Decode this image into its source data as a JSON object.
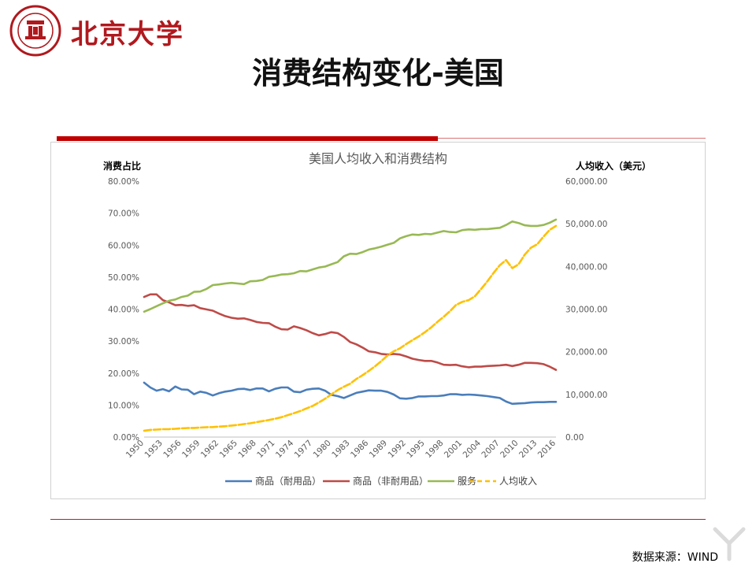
{
  "header": {
    "university_name": "北京大学",
    "seal_ring_text": "PEKING UNIVERSITY",
    "seal_year": "1898",
    "slide_title": "消费结构变化-美国"
  },
  "footer": {
    "source": "数据来源：WIND"
  },
  "colors": {
    "brand_red": "#b0191e",
    "durable": "#4a7ebb",
    "nondurable": "#be4b48",
    "services": "#98b954",
    "income": "#ffc000"
  },
  "chart_data": {
    "type": "line",
    "title": "美国人均收入和消费结构",
    "ylabel": "消费占比",
    "y2label": "人均收入（美元）",
    "ylim": [
      0,
      0.8
    ],
    "y2lim": [
      0,
      60000
    ],
    "y_ticks": [
      "0.00%",
      "10.00%",
      "20.00%",
      "30.00%",
      "40.00%",
      "50.00%",
      "60.00%",
      "70.00%",
      "80.00%"
    ],
    "y2_ticks": [
      "0.00",
      "10,000.00",
      "20,000.00",
      "30,000.00",
      "40,000.00",
      "50,000.00",
      "60,000.00"
    ],
    "x_tick_labels": [
      "1950",
      "1953",
      "1956",
      "1959",
      "1962",
      "1965",
      "1968",
      "1971",
      "1974",
      "1977",
      "1980",
      "1983",
      "1986",
      "1989",
      "1992",
      "1995",
      "1998",
      "2001",
      "2004",
      "2007",
      "2010",
      "2013",
      "2016"
    ],
    "x": [
      1950,
      1951,
      1952,
      1953,
      1954,
      1955,
      1956,
      1957,
      1958,
      1959,
      1960,
      1961,
      1962,
      1963,
      1964,
      1965,
      1966,
      1967,
      1968,
      1969,
      1970,
      1971,
      1972,
      1973,
      1974,
      1975,
      1976,
      1977,
      1978,
      1979,
      1980,
      1981,
      1982,
      1983,
      1984,
      1985,
      1986,
      1987,
      1988,
      1989,
      1990,
      1991,
      1992,
      1993,
      1994,
      1995,
      1996,
      1997,
      1998,
      1999,
      2000,
      2001,
      2002,
      2003,
      2004,
      2005,
      2006,
      2007,
      2008,
      2009,
      2010,
      2011,
      2012,
      2013,
      2014,
      2015,
      2016
    ],
    "legend_position": "bottom",
    "series": [
      {
        "name": "商品（耐用品）",
        "axis": "left",
        "color": "#4a7ebb",
        "style": "solid",
        "values": [
          0.17,
          0.155,
          0.145,
          0.15,
          0.143,
          0.158,
          0.149,
          0.148,
          0.134,
          0.142,
          0.138,
          0.13,
          0.137,
          0.142,
          0.145,
          0.15,
          0.151,
          0.147,
          0.152,
          0.152,
          0.143,
          0.151,
          0.155,
          0.155,
          0.142,
          0.14,
          0.148,
          0.151,
          0.152,
          0.145,
          0.132,
          0.128,
          0.122,
          0.13,
          0.138,
          0.142,
          0.146,
          0.145,
          0.145,
          0.141,
          0.133,
          0.121,
          0.12,
          0.122,
          0.127,
          0.127,
          0.128,
          0.128,
          0.13,
          0.134,
          0.134,
          0.132,
          0.133,
          0.132,
          0.13,
          0.128,
          0.125,
          0.122,
          0.111,
          0.104,
          0.105,
          0.106,
          0.108,
          0.109,
          0.109,
          0.11,
          0.11
        ]
      },
      {
        "name": "商品（非耐用品）",
        "axis": "left",
        "color": "#be4b48",
        "style": "solid",
        "values": [
          0.438,
          0.446,
          0.446,
          0.428,
          0.421,
          0.412,
          0.413,
          0.41,
          0.412,
          0.403,
          0.399,
          0.395,
          0.386,
          0.378,
          0.373,
          0.37,
          0.371,
          0.366,
          0.36,
          0.357,
          0.356,
          0.345,
          0.337,
          0.336,
          0.346,
          0.341,
          0.334,
          0.325,
          0.318,
          0.322,
          0.328,
          0.325,
          0.313,
          0.297,
          0.29,
          0.28,
          0.268,
          0.265,
          0.26,
          0.258,
          0.26,
          0.258,
          0.252,
          0.245,
          0.241,
          0.238,
          0.238,
          0.233,
          0.226,
          0.225,
          0.226,
          0.221,
          0.218,
          0.22,
          0.22,
          0.222,
          0.223,
          0.224,
          0.226,
          0.222,
          0.226,
          0.232,
          0.232,
          0.231,
          0.228,
          0.22,
          0.21
        ]
      },
      {
        "name": "服务",
        "axis": "left",
        "color": "#98b954",
        "style": "solid",
        "values": [
          0.392,
          0.4,
          0.409,
          0.418,
          0.426,
          0.43,
          0.438,
          0.442,
          0.454,
          0.455,
          0.463,
          0.475,
          0.477,
          0.48,
          0.482,
          0.48,
          0.478,
          0.487,
          0.488,
          0.491,
          0.501,
          0.504,
          0.508,
          0.509,
          0.512,
          0.519,
          0.518,
          0.524,
          0.53,
          0.533,
          0.54,
          0.547,
          0.565,
          0.573,
          0.572,
          0.578,
          0.586,
          0.59,
          0.595,
          0.601,
          0.607,
          0.621,
          0.628,
          0.633,
          0.632,
          0.635,
          0.634,
          0.639,
          0.644,
          0.641,
          0.64,
          0.647,
          0.649,
          0.648,
          0.65,
          0.65,
          0.652,
          0.654,
          0.663,
          0.674,
          0.669,
          0.662,
          0.66,
          0.66,
          0.663,
          0.67,
          0.68
        ]
      },
      {
        "name": "人均收入",
        "axis": "right",
        "color": "#ffc000",
        "style": "dash",
        "values": [
          1500,
          1680,
          1760,
          1850,
          1860,
          1940,
          2050,
          2120,
          2150,
          2240,
          2300,
          2350,
          2460,
          2550,
          2700,
          2850,
          3050,
          3230,
          3480,
          3740,
          4000,
          4300,
          4650,
          5140,
          5600,
          6100,
          6700,
          7300,
          8100,
          9000,
          10000,
          11000,
          11800,
          12500,
          13600,
          14500,
          15500,
          16600,
          17800,
          19100,
          20100,
          20800,
          21800,
          22700,
          23600,
          24600,
          25700,
          27000,
          28200,
          29500,
          31000,
          31700,
          32100,
          33000,
          34700,
          36500,
          38500,
          40300,
          41500,
          39600,
          40500,
          42800,
          44400,
          45200,
          47000,
          48600,
          49500
        ]
      }
    ]
  }
}
